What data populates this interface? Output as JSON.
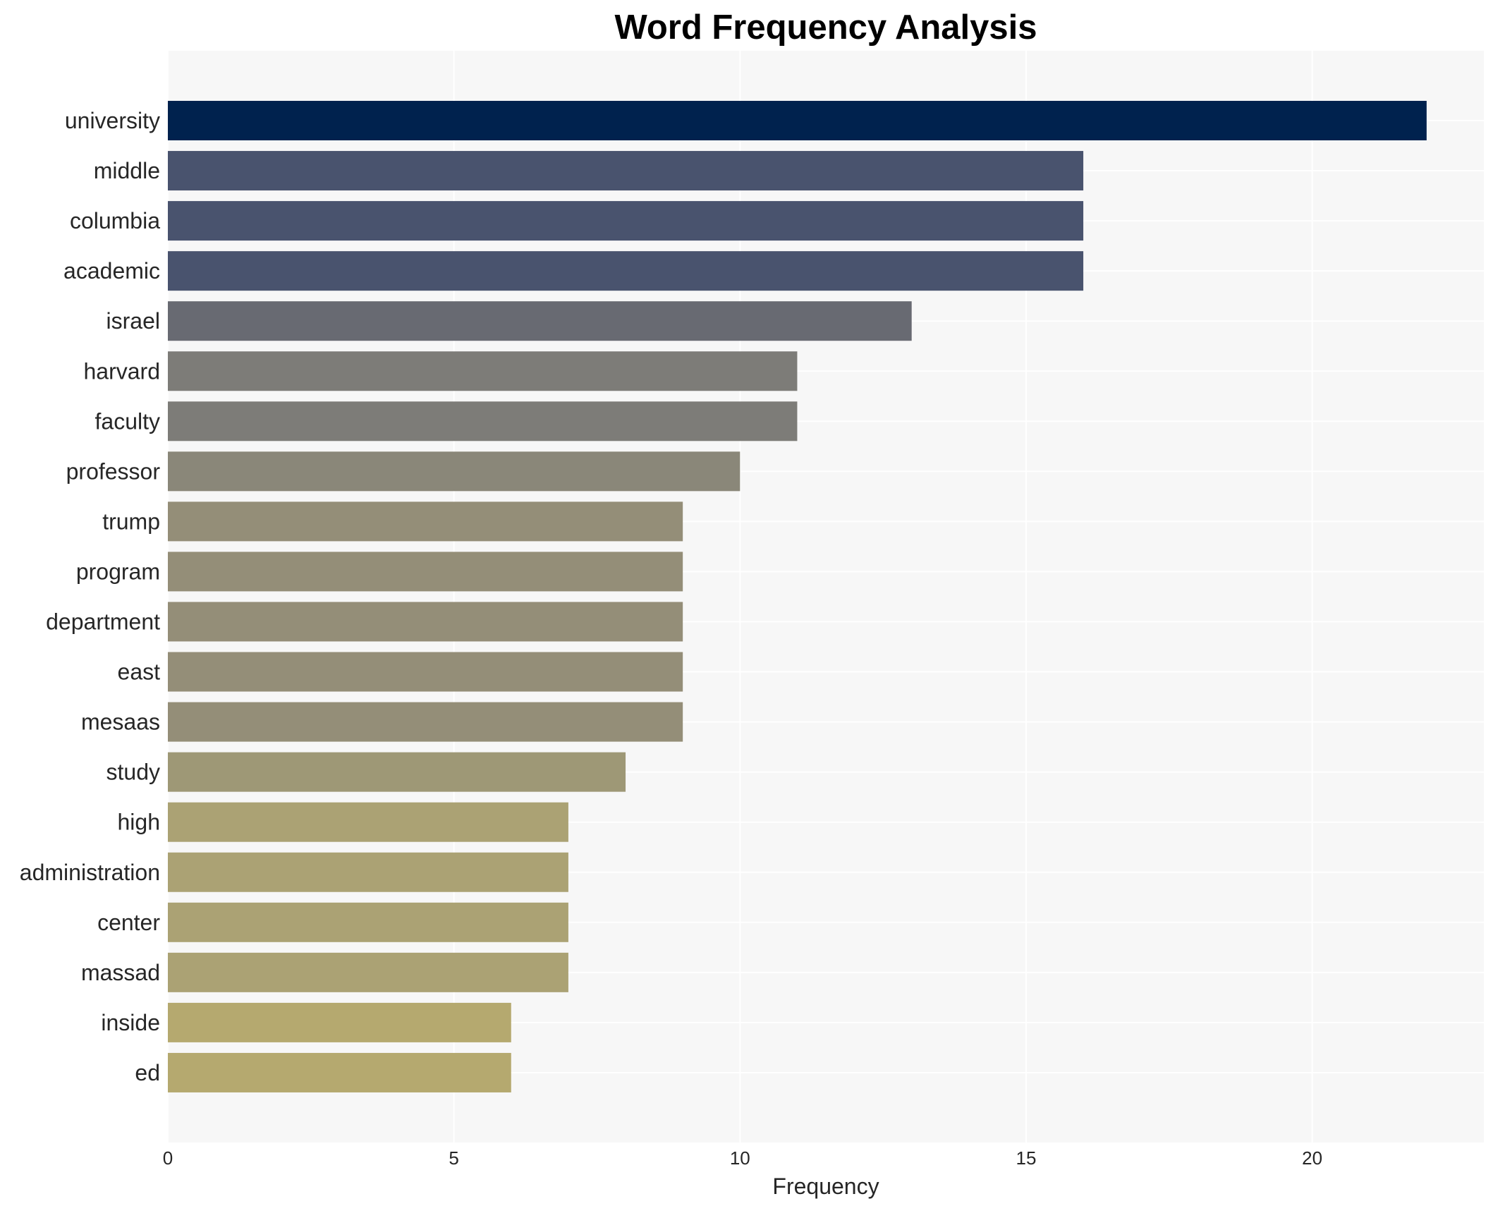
{
  "chart_data": {
    "type": "bar",
    "orientation": "horizontal",
    "title": "Word Frequency Analysis",
    "xlabel": "Frequency",
    "ylabel": "",
    "xlim": [
      0,
      23
    ],
    "x_ticks": [
      0,
      5,
      10,
      15,
      20
    ],
    "grid": true,
    "legend": "none",
    "background_color": "#f7f7f7",
    "grid_color": "#ffffff",
    "categories": [
      "university",
      "middle",
      "columbia",
      "academic",
      "israel",
      "harvard",
      "faculty",
      "professor",
      "trump",
      "program",
      "department",
      "east",
      "mesaas",
      "study",
      "high",
      "administration",
      "center",
      "massad",
      "inside",
      "ed"
    ],
    "values": [
      22,
      16,
      16,
      16,
      13,
      11,
      11,
      10,
      9,
      9,
      9,
      9,
      9,
      8,
      7,
      7,
      7,
      7,
      6,
      6
    ],
    "colors": [
      "#00224e",
      "#49536e",
      "#49536e",
      "#49536e",
      "#686a72",
      "#7d7c78",
      "#7d7c78",
      "#8a8779",
      "#948e78",
      "#948e78",
      "#948e78",
      "#948e78",
      "#948e78",
      "#9e9876",
      "#aba274",
      "#aba274",
      "#aba274",
      "#aba274",
      "#b5a96f",
      "#b5a96f"
    ]
  }
}
